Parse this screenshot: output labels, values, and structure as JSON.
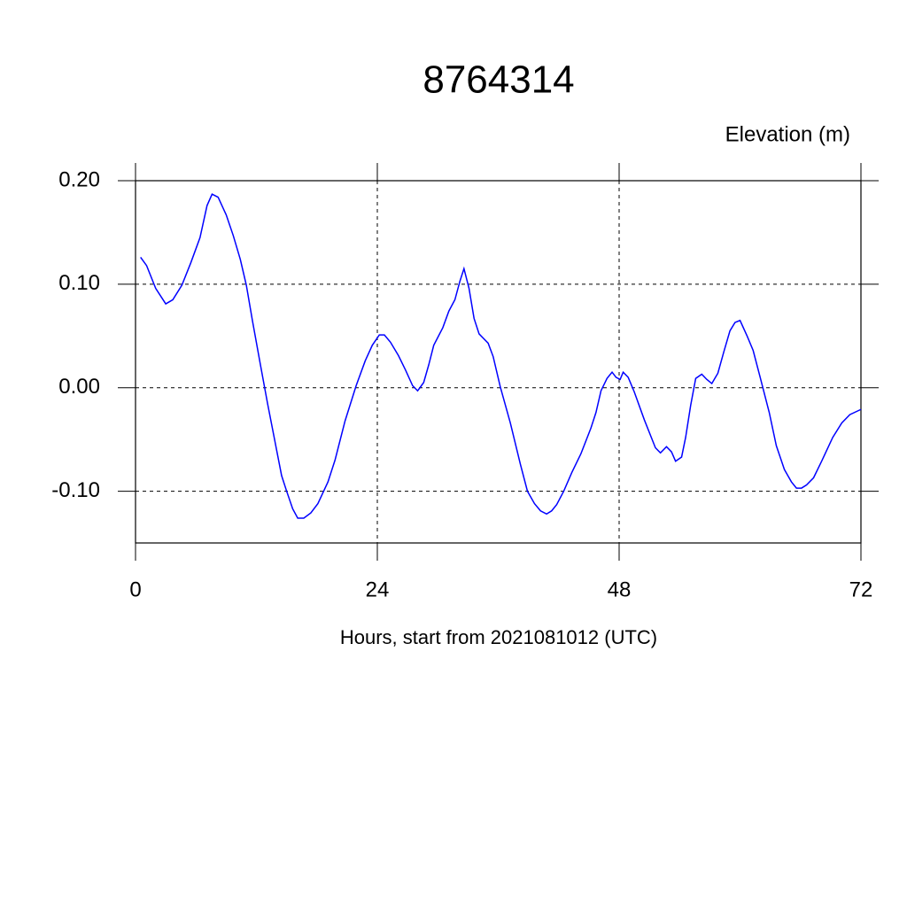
{
  "chart_data": {
    "type": "line",
    "title": "8764314",
    "y_label": "Elevation (m)",
    "x_label": "Hours, start from 2021081012 (UTC)",
    "xlim": [
      0,
      72
    ],
    "xticks": [
      0,
      24,
      48,
      72
    ],
    "ylim": [
      -0.15,
      0.2
    ],
    "yticks": [
      {
        "value": 0.2,
        "label": "0.20"
      },
      {
        "value": 0.1,
        "label": "0.10"
      },
      {
        "value": 0,
        "label": "0.00"
      },
      {
        "value": -0.1,
        "label": "-0.10"
      }
    ],
    "grid": true,
    "series": [
      {
        "name": "Elevation",
        "color": "#0000ff",
        "x": [
          0.5,
          1.1,
          2.0,
          3.0,
          3.7,
          4.6,
          5.5,
          6.4,
          7.1,
          7.6,
          8.2,
          9.0,
          9.7,
          10.4,
          11.0,
          11.6,
          12.4,
          13.1,
          13.8,
          14.5,
          15.0,
          15.6,
          16.1,
          16.7,
          17.4,
          18.1,
          19.1,
          19.8,
          20.8,
          21.9,
          22.8,
          23.5,
          24.2,
          24.7,
          25.3,
          26.1,
          26.8,
          27.5,
          28.0,
          28.6,
          29.1,
          29.6,
          30.5,
          31.1,
          31.7,
          32.2,
          32.6,
          33.1,
          33.6,
          34.1,
          35.0,
          35.5,
          36.2,
          37.2,
          38.2,
          38.9,
          39.6,
          40.2,
          40.8,
          41.3,
          41.8,
          42.5,
          43.3,
          44.2,
          45.2,
          45.7,
          46.2,
          46.8,
          47.3,
          47.7,
          48.1,
          48.4,
          48.9,
          49.5,
          50.5,
          51.6,
          52.1,
          52.7,
          53.2,
          53.6,
          54.2,
          54.6,
          55.1,
          55.6,
          56.2,
          56.7,
          57.2,
          57.8,
          58.4,
          59.0,
          59.5,
          60.0,
          60.7,
          61.3,
          62.0,
          62.9,
          63.6,
          64.4,
          65.1,
          65.6,
          66.1,
          66.6,
          67.3,
          68.1,
          69.2,
          70.1,
          70.9,
          72.0
        ],
        "values": [
          0.126,
          0.118,
          0.096,
          0.081,
          0.085,
          0.099,
          0.121,
          0.145,
          0.176,
          0.187,
          0.184,
          0.167,
          0.147,
          0.124,
          0.099,
          0.065,
          0.022,
          -0.015,
          -0.05,
          -0.085,
          -0.1,
          -0.117,
          -0.126,
          -0.126,
          -0.121,
          -0.112,
          -0.091,
          -0.07,
          -0.032,
          0.002,
          0.026,
          0.041,
          0.051,
          0.051,
          0.044,
          0.031,
          0.017,
          0.002,
          -0.003,
          0.005,
          0.022,
          0.041,
          0.058,
          0.074,
          0.085,
          0.103,
          0.115,
          0.096,
          0.067,
          0.052,
          0.043,
          0.03,
          0.001,
          -0.034,
          -0.074,
          -0.1,
          -0.112,
          -0.119,
          -0.122,
          -0.119,
          -0.113,
          -0.1,
          -0.082,
          -0.064,
          -0.039,
          -0.024,
          -0.003,
          0.009,
          0.015,
          0.01,
          0.008,
          0.015,
          0.01,
          -0.004,
          -0.031,
          -0.058,
          -0.063,
          -0.057,
          -0.062,
          -0.071,
          -0.067,
          -0.048,
          -0.017,
          0.009,
          0.013,
          0.008,
          0.004,
          0.014,
          0.035,
          0.055,
          0.063,
          0.065,
          0.05,
          0.036,
          0.01,
          -0.024,
          -0.056,
          -0.079,
          -0.091,
          -0.097,
          -0.097,
          -0.094,
          -0.087,
          -0.071,
          -0.048,
          -0.034,
          -0.026,
          -0.021
        ]
      }
    ]
  }
}
